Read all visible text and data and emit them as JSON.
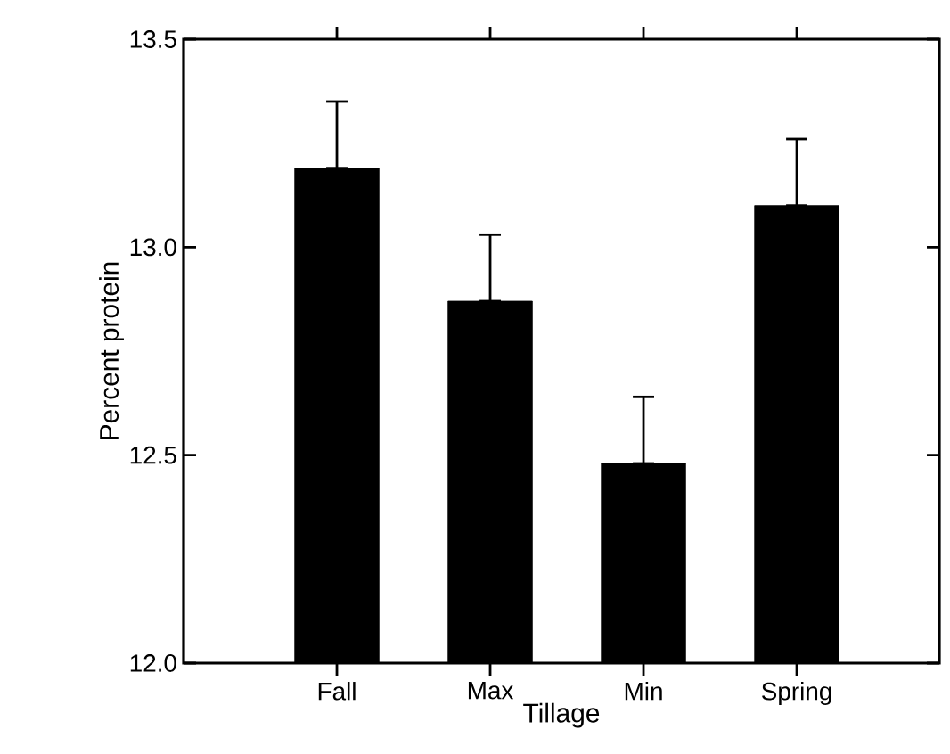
{
  "chart_data": {
    "type": "bar",
    "xlabel": "Tillage",
    "ylabel": "Percent protein",
    "categories": [
      "Fall",
      "Max",
      "Min",
      "Spring"
    ],
    "values": [
      13.19,
      12.87,
      12.48,
      13.1
    ],
    "errors": [
      [
        13.19,
        13.35
      ],
      [
        12.87,
        13.03
      ],
      [
        12.48,
        12.64
      ],
      [
        13.1,
        13.26
      ]
    ],
    "color": "#000000",
    "ylim": [
      12.0,
      13.5
    ],
    "yticks": [
      {
        "value": 12.0,
        "label": "12.0"
      },
      {
        "value": 12.5,
        "label": "12.5"
      },
      {
        "value": 13.0,
        "label": "13.0"
      },
      {
        "value": 13.5,
        "label": "13.5"
      }
    ],
    "grid": false
  }
}
